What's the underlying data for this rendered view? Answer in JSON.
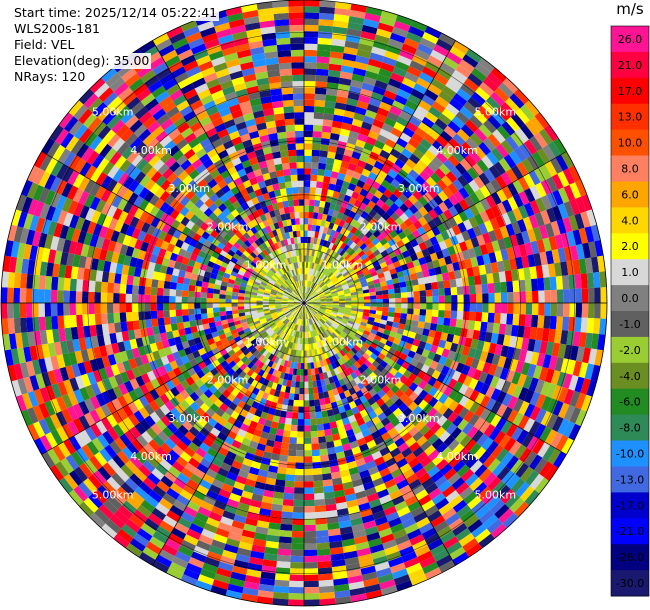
{
  "info": {
    "start_time": "Start time: 2025/12/14 05:22:41",
    "instrument": "WLS200s-181",
    "field": "Field: VEL",
    "elevation": "Elevation(deg): 35.00",
    "nrays": "NRays: 120"
  },
  "colorbar": {
    "unit": "m/s",
    "ticks": [
      "26.0",
      "21.0",
      "17.0",
      "13.0",
      "10.0",
      "8.0",
      "6.0",
      "4.0",
      "2.0",
      "1.0",
      "0.0",
      "-1.0",
      "-2.0",
      "-4.0",
      "-6.0",
      "-8.0",
      "-10.0",
      "-13.0",
      "-17.0",
      "-21.0",
      "-26.0",
      "-30.0"
    ],
    "colors": [
      "#ff1493",
      "#ff0040",
      "#ff0000",
      "#ff3000",
      "#ff5000",
      "#ff8060",
      "#ffa500",
      "#ffd700",
      "#ffff00",
      "#d8d8d8",
      "#808080",
      "#606060",
      "#9acd32",
      "#6b8e23",
      "#228b22",
      "#2e8b57",
      "#1e90ff",
      "#4169e1",
      "#0000cd",
      "#0000ff",
      "#000080",
      "#191970"
    ]
  },
  "chart_data": {
    "type": "ppi",
    "field": "VEL",
    "units": "m/s",
    "elevation_deg": 35.0,
    "nrays": 120,
    "range_rings_km": [
      "1.00km",
      "2.00km",
      "3.00km",
      "4.00km",
      "5.00km"
    ],
    "max_range_km": 5.6,
    "color_levels": [
      26.0,
      21.0,
      17.0,
      13.0,
      10.0,
      8.0,
      6.0,
      4.0,
      2.0,
      1.0,
      0.0,
      -1.0,
      -2.0,
      -4.0,
      -6.0,
      -8.0,
      -10.0,
      -13.0,
      -17.0,
      -21.0,
      -26.0,
      -30.0
    ],
    "azimuth_lines": 12
  }
}
